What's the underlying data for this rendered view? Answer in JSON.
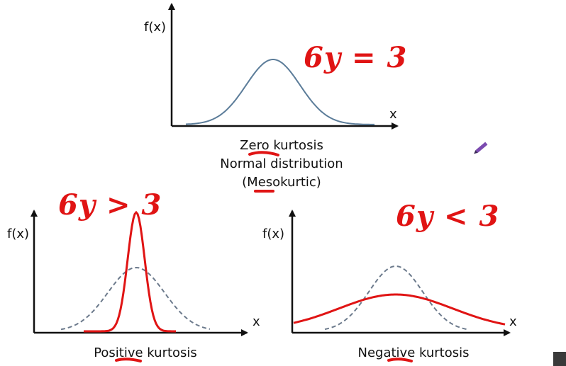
{
  "panels": {
    "top": {
      "ylabel": "f(x)",
      "xlabel": "x",
      "caption": [
        "Zero kurtosis",
        "Normal distribution",
        "(Mesokurtic)"
      ],
      "annotation": "6y = 3"
    },
    "left": {
      "ylabel": "f(x)",
      "xlabel": "x",
      "caption": [
        "Positive kurtosis"
      ],
      "annotation": "6y > 3"
    },
    "right": {
      "ylabel": "f(x)",
      "xlabel": "x",
      "caption": [
        "Negative kurtosis"
      ],
      "annotation": "6y < 3"
    }
  },
  "colors": {
    "axis": "#111111",
    "normal_curve": "#5b7c99",
    "dashed_curve": "#6c7a8c",
    "highlight": "#e01414",
    "pen_icon": "#7b4bb0"
  },
  "icons": [
    "pen-icon"
  ]
}
